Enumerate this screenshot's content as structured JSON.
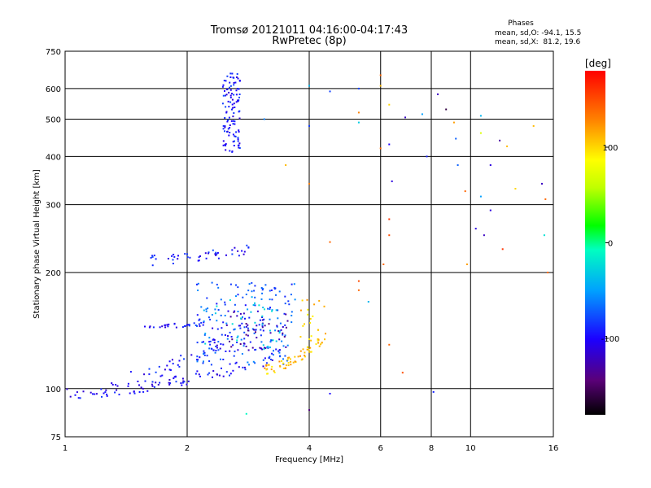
{
  "title_line1": "Tromsø 20121011 04:16:00-04:17:43",
  "title_line2": "RwPretec (8p)",
  "stats": {
    "heading": "Phases",
    "line1": "mean, sd,O: -94.1, 15.5",
    "line2": "mean, sd,X:  81.2, 19.6"
  },
  "colorbar": {
    "label": "[deg]",
    "range": [
      -180,
      180
    ],
    "tick_values": [
      100,
      0,
      -100
    ],
    "tick_labels": [
      "100",
      "0",
      "-100"
    ]
  },
  "chart_data": {
    "type": "scatter",
    "title": "Tromsø 20121011 04:16:00-04:17:43",
    "subtitle": "RwPretec (8p)",
    "xlabel": "Frequency [MHz]",
    "ylabel": "Stationary phase Virtual Height [km]",
    "xscale": "log",
    "yscale": "log",
    "xlim": [
      1,
      16
    ],
    "ylim": [
      75,
      750
    ],
    "xticks": [
      1,
      2,
      4,
      6,
      8,
      10,
      16
    ],
    "xtick_labels": [
      "1",
      "2",
      "4",
      "6",
      "8",
      "10",
      "16"
    ],
    "yticks": [
      75,
      100,
      200,
      300,
      400,
      500,
      600,
      750
    ],
    "ytick_labels": [
      "75",
      "100",
      "200",
      "300",
      "400",
      "500",
      "600",
      "750"
    ],
    "grid": true,
    "color_variable": "phase [deg]",
    "point_groups": [
      {
        "kind": "line",
        "count": 90,
        "x": [
          1.0,
          3.3
        ],
        "y": [
          97,
          120
        ],
        "phase": -100,
        "spread": 0.035
      },
      {
        "kind": "line",
        "count": 45,
        "x": [
          1.3,
          2.5
        ],
        "y": [
          105,
          135
        ],
        "phase": -95,
        "spread": 0.04
      },
      {
        "kind": "line",
        "count": 28,
        "x": [
          1.55,
          2.2
        ],
        "y": [
          145,
          147
        ],
        "phase": -95,
        "spread": 0.012
      },
      {
        "kind": "line",
        "count": 45,
        "x": [
          1.6,
          2.85
        ],
        "y": [
          215,
          230
        ],
        "phase": -95,
        "spread": 0.03
      },
      {
        "kind": "box",
        "count": 110,
        "x": [
          2.45,
          2.7
        ],
        "y": [
          410,
          660
        ],
        "phase": -95
      },
      {
        "kind": "box",
        "count": 180,
        "x": [
          2.1,
          3.7
        ],
        "y": [
          115,
          190
        ],
        "phase": -75
      },
      {
        "kind": "box",
        "count": 60,
        "x": [
          2.3,
          3.6
        ],
        "y": [
          125,
          160
        ],
        "phase": -125
      },
      {
        "kind": "line",
        "count": 60,
        "x": [
          3.1,
          4.35
        ],
        "y": [
          112,
          135
        ],
        "phase": 110,
        "spread": 0.03
      },
      {
        "kind": "box",
        "count": 22,
        "x": [
          3.8,
          4.4
        ],
        "y": [
          130,
          170
        ],
        "phase": 105
      },
      {
        "kind": "box",
        "count": 35,
        "x": [
          2.2,
          3.4
        ],
        "y": [
          125,
          175
        ],
        "phase": -30
      }
    ],
    "points": [
      {
        "x": 2.8,
        "y": 86,
        "phase": -10
      },
      {
        "x": 3.1,
        "y": 500,
        "phase": -60
      },
      {
        "x": 3.5,
        "y": 380,
        "phase": 110
      },
      {
        "x": 4.0,
        "y": 610,
        "phase": -40
      },
      {
        "x": 4.0,
        "y": 480,
        "phase": -80
      },
      {
        "x": 4.0,
        "y": 340,
        "phase": 130
      },
      {
        "x": 4.0,
        "y": 88,
        "phase": -140
      },
      {
        "x": 4.5,
        "y": 590,
        "phase": -80
      },
      {
        "x": 4.5,
        "y": 240,
        "phase": 140
      },
      {
        "x": 4.5,
        "y": 97,
        "phase": -100
      },
      {
        "x": 5.3,
        "y": 600,
        "phase": -80
      },
      {
        "x": 5.3,
        "y": 520,
        "phase": 130
      },
      {
        "x": 5.3,
        "y": 490,
        "phase": -30
      },
      {
        "x": 5.3,
        "y": 190,
        "phase": 150
      },
      {
        "x": 5.3,
        "y": 180,
        "phase": 140
      },
      {
        "x": 5.6,
        "y": 168,
        "phase": -40
      },
      {
        "x": 6.0,
        "y": 650,
        "phase": 140
      },
      {
        "x": 6.0,
        "y": 610,
        "phase": 110
      },
      {
        "x": 6.0,
        "y": 420,
        "phase": 140
      },
      {
        "x": 6.3,
        "y": 545,
        "phase": 100
      },
      {
        "x": 6.3,
        "y": 430,
        "phase": -100
      },
      {
        "x": 6.3,
        "y": 275,
        "phase": 160
      },
      {
        "x": 6.3,
        "y": 250,
        "phase": 150
      },
      {
        "x": 6.4,
        "y": 345,
        "phase": -110
      },
      {
        "x": 6.1,
        "y": 210,
        "phase": 140
      },
      {
        "x": 6.3,
        "y": 130,
        "phase": 140
      },
      {
        "x": 6.8,
        "y": 110,
        "phase": 150
      },
      {
        "x": 6.9,
        "y": 505,
        "phase": -120
      },
      {
        "x": 7.6,
        "y": 515,
        "phase": -50
      },
      {
        "x": 7.8,
        "y": 400,
        "phase": -90
      },
      {
        "x": 8.1,
        "y": 98,
        "phase": -90
      },
      {
        "x": 8.3,
        "y": 580,
        "phase": -120
      },
      {
        "x": 8.7,
        "y": 530,
        "phase": -160
      },
      {
        "x": 9.1,
        "y": 490,
        "phase": 120
      },
      {
        "x": 9.2,
        "y": 445,
        "phase": -70
      },
      {
        "x": 9.3,
        "y": 380,
        "phase": -70
      },
      {
        "x": 9.7,
        "y": 325,
        "phase": 140
      },
      {
        "x": 9.8,
        "y": 210,
        "phase": 120
      },
      {
        "x": 10.6,
        "y": 510,
        "phase": -40
      },
      {
        "x": 10.6,
        "y": 460,
        "phase": 70
      },
      {
        "x": 10.6,
        "y": 315,
        "phase": -50
      },
      {
        "x": 10.3,
        "y": 260,
        "phase": -110
      },
      {
        "x": 10.8,
        "y": 250,
        "phase": -120
      },
      {
        "x": 11.2,
        "y": 380,
        "phase": -110
      },
      {
        "x": 11.2,
        "y": 290,
        "phase": -110
      },
      {
        "x": 11.8,
        "y": 440,
        "phase": -130
      },
      {
        "x": 12.0,
        "y": 230,
        "phase": 160
      },
      {
        "x": 12.3,
        "y": 425,
        "phase": 110
      },
      {
        "x": 12.9,
        "y": 330,
        "phase": 100
      },
      {
        "x": 14.3,
        "y": 480,
        "phase": 110
      },
      {
        "x": 15.0,
        "y": 340,
        "phase": -120
      },
      {
        "x": 15.3,
        "y": 310,
        "phase": 140
      },
      {
        "x": 15.5,
        "y": 200,
        "phase": 140
      },
      {
        "x": 15.2,
        "y": 250,
        "phase": -20
      }
    ]
  }
}
